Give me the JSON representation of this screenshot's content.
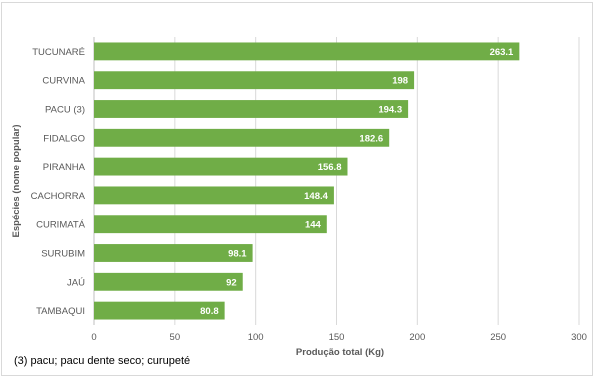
{
  "chart_data": {
    "type": "bar",
    "orientation": "horizontal",
    "categories": [
      "TUCUNARÉ",
      "CURVINA",
      "PACU (3)",
      "FIDALGO",
      "PIRANHA",
      "CACHORRA",
      "CURIMATÁ",
      "SURUBIM",
      "JAÚ",
      "TAMBAQUI"
    ],
    "values": [
      263.1,
      198,
      194.3,
      182.6,
      156.8,
      148.4,
      144,
      98.1,
      92,
      80.8
    ],
    "data_labels": [
      "263.1",
      "198",
      "194.3",
      "182.6",
      "156.8",
      "148.4",
      "144",
      "98.1",
      "92",
      "80.8"
    ],
    "title": "",
    "xlabel": "Produção total (Kg)",
    "ylabel": "Espécies (nome popular)",
    "xlim": [
      0,
      300
    ],
    "xticks": [
      "0",
      "50",
      "100",
      "150",
      "200",
      "250",
      "300"
    ],
    "grid": "vertical",
    "bar_color": "#70ad47"
  },
  "footnote": "(3) pacu; pacu dente seco; curupeté"
}
